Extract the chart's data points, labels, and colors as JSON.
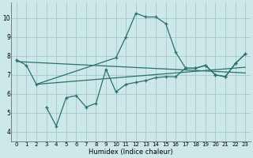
{
  "bg_color": "#cce8e8",
  "grid_color": "#aacccc",
  "line_color": "#2a7070",
  "xlabel": "Humidex (Indice chaleur)",
  "xlim": [
    -0.5,
    23.5
  ],
  "ylim": [
    3.5,
    10.8
  ],
  "yticks": [
    4,
    5,
    6,
    7,
    8,
    9,
    10
  ],
  "xticks": [
    0,
    1,
    2,
    3,
    4,
    5,
    6,
    7,
    8,
    9,
    10,
    11,
    12,
    13,
    14,
    15,
    16,
    17,
    18,
    19,
    20,
    21,
    22,
    23
  ],
  "series": [
    {
      "x": [
        0,
        1,
        2,
        10,
        11,
        12,
        13,
        14,
        15,
        16,
        17,
        18,
        19,
        20,
        21,
        22,
        23
      ],
      "y": [
        7.8,
        7.5,
        6.5,
        7.9,
        9.0,
        10.25,
        10.05,
        10.05,
        9.7,
        8.2,
        7.35,
        7.35,
        7.5,
        7.0,
        6.9,
        7.6,
        8.1
      ]
    },
    {
      "x": [
        3,
        4,
        5,
        6,
        7,
        8,
        9,
        10,
        11,
        12,
        13,
        14,
        15,
        16,
        17,
        18,
        19,
        20,
        21,
        22,
        23
      ],
      "y": [
        5.3,
        4.3,
        5.8,
        5.9,
        5.3,
        5.5,
        7.3,
        6.1,
        6.5,
        6.6,
        6.7,
        6.85,
        6.9,
        6.9,
        7.35,
        7.35,
        7.5,
        7.0,
        6.9,
        7.6,
        8.1
      ]
    },
    {
      "x": [
        0,
        23
      ],
      "y": [
        7.7,
        7.1
      ]
    },
    {
      "x": [
        2,
        23
      ],
      "y": [
        6.5,
        7.4
      ]
    }
  ]
}
